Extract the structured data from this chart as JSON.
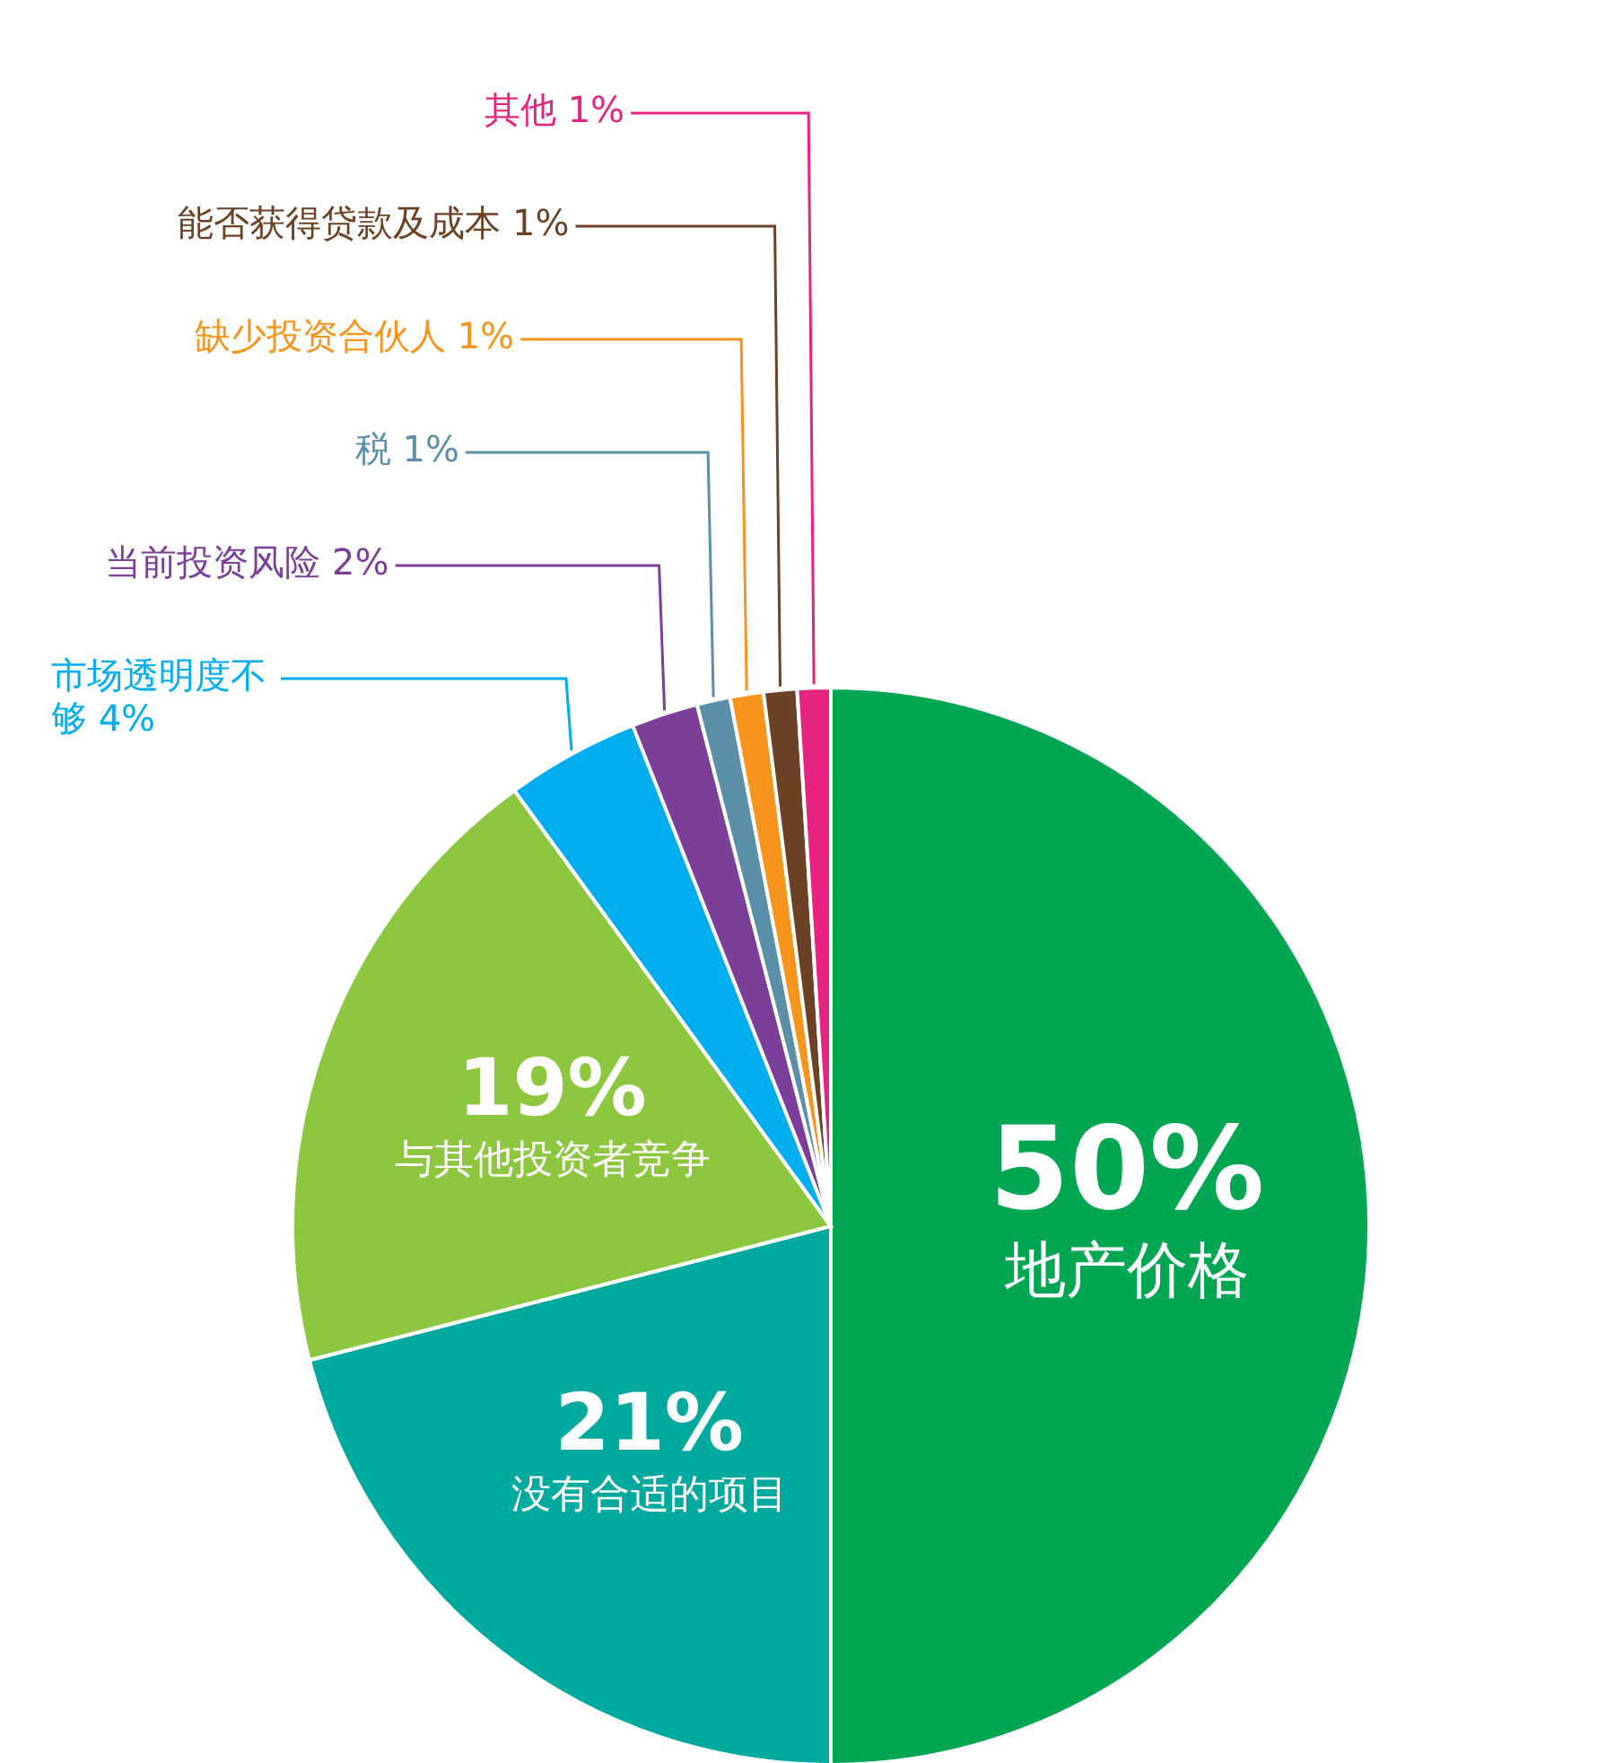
{
  "chart_data": {
    "type": "pie",
    "categories": [
      "地产价格",
      "没有合适的项目",
      "与其他投资者竞争",
      "市场透明度不够",
      "当前投资风险",
      "税",
      "缺少投资合伙人",
      "能否获得贷款及成本",
      "其他"
    ],
    "values": [
      50,
      21,
      19,
      4,
      2,
      1,
      1,
      1,
      1
    ],
    "colors": [
      "#00a651",
      "#00a99d",
      "#8dc63f",
      "#00aeef",
      "#7b3f99",
      "#5b8fa8",
      "#f7941d",
      "#6b4226",
      "#e6237e"
    ],
    "value_labels": [
      "50%",
      "21%",
      "19%",
      "4%",
      "2%",
      "1%",
      "1%",
      "1%",
      "1%"
    ]
  }
}
